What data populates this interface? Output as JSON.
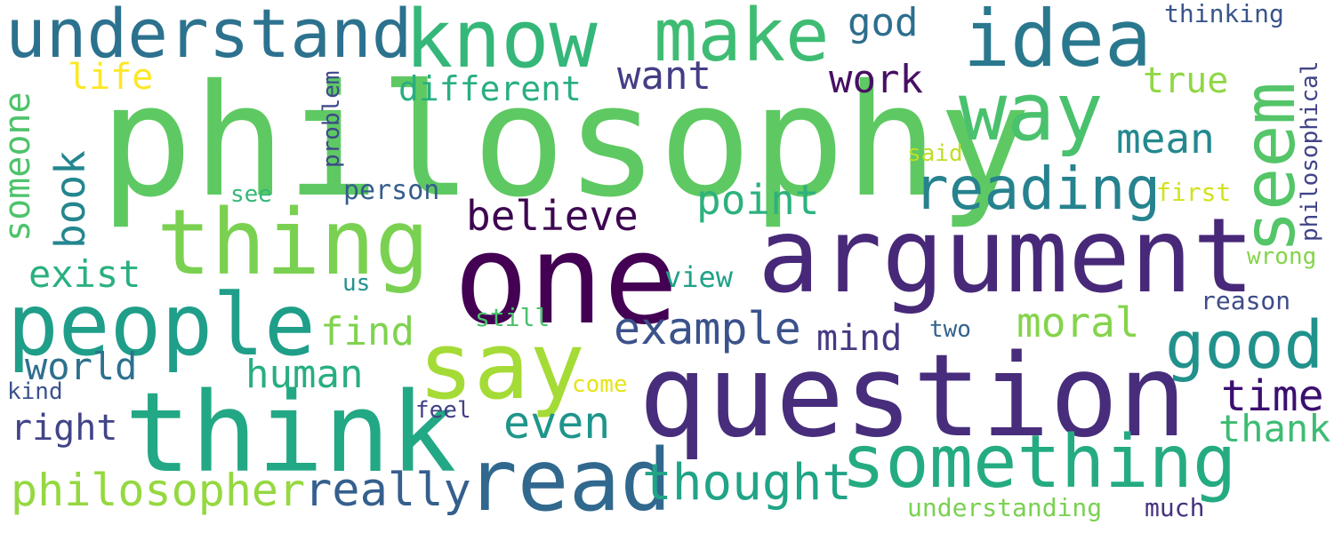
{
  "words": [
    {
      "text": "philosophy",
      "color": "#5ec962"
    },
    {
      "text": "one",
      "color": "#440154"
    },
    {
      "text": "question",
      "color": "#472d7b"
    },
    {
      "text": "argument",
      "color": "#482878"
    },
    {
      "text": "think",
      "color": "#22a884"
    },
    {
      "text": "say",
      "color": "#a5db36"
    },
    {
      "text": "thing",
      "color": "#7ad151"
    },
    {
      "text": "people",
      "color": "#1f9e89"
    },
    {
      "text": "know",
      "color": "#35b779"
    },
    {
      "text": "read",
      "color": "#31688e"
    },
    {
      "text": "something",
      "color": "#25ab82"
    },
    {
      "text": "idea",
      "color": "#2a788e"
    },
    {
      "text": "make",
      "color": "#3fbc73"
    },
    {
      "text": "understand",
      "color": "#2c728e"
    },
    {
      "text": "way",
      "color": "#4ac16d"
    },
    {
      "text": "seem",
      "color": "#54c568"
    },
    {
      "text": "good",
      "color": "#21918c"
    },
    {
      "text": "reading",
      "color": "#26828e"
    },
    {
      "text": "thought",
      "color": "#20a486"
    },
    {
      "text": "really",
      "color": "#355f8d"
    },
    {
      "text": "philosopher",
      "color": "#95d840"
    },
    {
      "text": "example",
      "color": "#3b528b"
    },
    {
      "text": "believe",
      "color": "#3e0751"
    },
    {
      "text": "even",
      "color": "#1f958b"
    },
    {
      "text": "time",
      "color": "#3b0f70"
    },
    {
      "text": "moral",
      "color": "#84d44b"
    },
    {
      "text": "mean",
      "color": "#23898e"
    },
    {
      "text": "point",
      "color": "#2db27d"
    },
    {
      "text": "thank",
      "color": "#3dbc74"
    },
    {
      "text": "find",
      "color": "#7fd34e"
    },
    {
      "text": "human",
      "color": "#28ae80"
    },
    {
      "text": "world",
      "color": "#2d708e"
    },
    {
      "text": "exist",
      "color": "#2ab07f"
    },
    {
      "text": "book",
      "color": "#24868e"
    },
    {
      "text": "someone",
      "color": "#4ec36b"
    },
    {
      "text": "right",
      "color": "#414487"
    },
    {
      "text": "want",
      "color": "#433e85"
    },
    {
      "text": "work",
      "color": "#471063"
    },
    {
      "text": "different",
      "color": "#29af7f"
    },
    {
      "text": "true",
      "color": "#8fd744"
    },
    {
      "text": "god",
      "color": "#2e6e8e"
    },
    {
      "text": "mind",
      "color": "#443a83"
    },
    {
      "text": "life",
      "color": "#fde725"
    },
    {
      "text": "person",
      "color": "#365c8d"
    },
    {
      "text": "view",
      "color": "#1fa287"
    },
    {
      "text": "thinking",
      "color": "#39558c"
    },
    {
      "text": "philosophical",
      "color": "#414487"
    },
    {
      "text": "problem",
      "color": "#3e4989"
    },
    {
      "text": "understanding",
      "color": "#7ad151"
    },
    {
      "text": "much",
      "color": "#46327e"
    },
    {
      "text": "reason",
      "color": "#3e4c8a"
    },
    {
      "text": "wrong",
      "color": "#84d44b"
    },
    {
      "text": "first",
      "color": "#d2e21b"
    },
    {
      "text": "said",
      "color": "#bddf26"
    },
    {
      "text": "see",
      "color": "#35b779"
    },
    {
      "text": "us",
      "color": "#21918c"
    },
    {
      "text": "still",
      "color": "#4ac16d"
    },
    {
      "text": "two",
      "color": "#33638d"
    },
    {
      "text": "come",
      "color": "#e5e419"
    },
    {
      "text": "feel",
      "color": "#424086"
    },
    {
      "text": "kind",
      "color": "#3b528b"
    }
  ]
}
